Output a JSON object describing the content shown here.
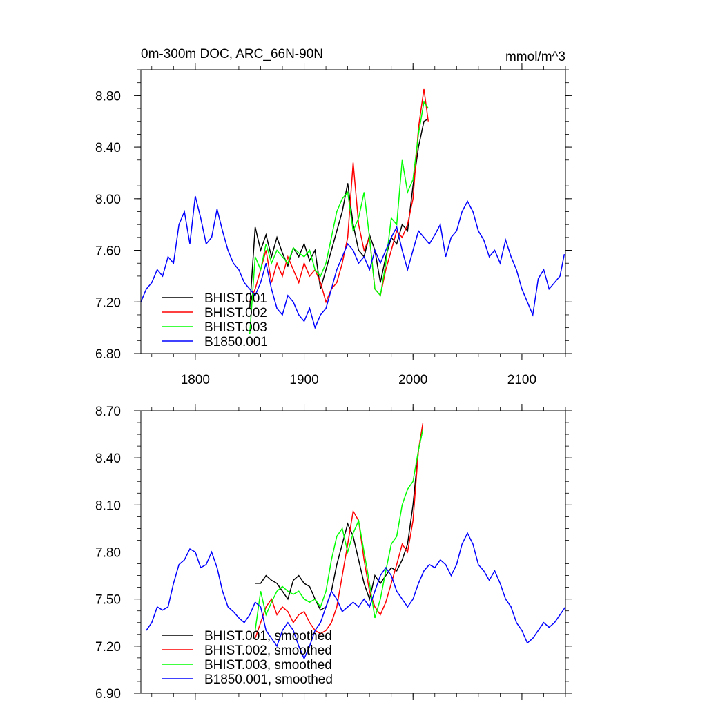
{
  "chart_data": [
    {
      "type": "line",
      "title": "0m-300m DOC, ARC_66N-90N",
      "units": "mmol/m^3",
      "xlim": [
        1750,
        2140
      ],
      "ylim": [
        6.8,
        9.0
      ],
      "x_ticks": [
        1800,
        1900,
        2000,
        2100
      ],
      "y_ticks": [
        6.8,
        7.2,
        7.6,
        8.0,
        8.4,
        8.8
      ],
      "y_tick_labels": [
        "6.80",
        "7.20",
        "7.60",
        "8.00",
        "8.40",
        "8.80"
      ],
      "x_tick_labels": [
        "1800",
        "1900",
        "2000",
        "2100"
      ],
      "legend_position": "bottom-left",
      "series": [
        {
          "name": "BHIST.001",
          "color": "#000000",
          "x": [
            1850,
            1855,
            1860,
            1865,
            1870,
            1875,
            1880,
            1885,
            1890,
            1895,
            1900,
            1905,
            1910,
            1915,
            1920,
            1925,
            1930,
            1935,
            1940,
            1945,
            1950,
            1955,
            1960,
            1965,
            1970,
            1975,
            1980,
            1985,
            1990,
            1995,
            2000,
            2005,
            2010,
            2014
          ],
          "y": [
            7.15,
            7.78,
            7.6,
            7.72,
            7.55,
            7.7,
            7.58,
            7.48,
            7.62,
            7.55,
            7.65,
            7.52,
            7.6,
            7.3,
            7.45,
            7.6,
            7.75,
            7.9,
            8.12,
            7.8,
            7.6,
            7.55,
            7.72,
            7.6,
            7.35,
            7.55,
            7.7,
            7.65,
            7.8,
            7.75,
            8.1,
            8.4,
            8.6,
            8.62
          ]
        },
        {
          "name": "BHIST.002",
          "color": "#ff0000",
          "x": [
            1850,
            1855,
            1860,
            1865,
            1870,
            1875,
            1880,
            1885,
            1890,
            1895,
            1900,
            1905,
            1910,
            1915,
            1920,
            1925,
            1930,
            1935,
            1940,
            1945,
            1950,
            1955,
            1960,
            1965,
            1970,
            1975,
            1980,
            1985,
            1990,
            1995,
            2000,
            2005,
            2010,
            2014
          ],
          "y": [
            7.2,
            7.3,
            7.45,
            7.6,
            7.35,
            7.5,
            7.4,
            7.55,
            7.45,
            7.35,
            7.5,
            7.4,
            7.45,
            7.35,
            7.2,
            7.3,
            7.35,
            7.5,
            7.7,
            8.28,
            7.8,
            7.6,
            7.7,
            7.3,
            7.25,
            7.45,
            7.6,
            7.75,
            7.7,
            7.8,
            8.0,
            8.55,
            8.85,
            8.6
          ]
        },
        {
          "name": "BHIST.003",
          "color": "#00ff00",
          "x": [
            1850,
            1855,
            1860,
            1865,
            1870,
            1875,
            1880,
            1885,
            1890,
            1895,
            1900,
            1905,
            1910,
            1915,
            1920,
            1925,
            1930,
            1935,
            1940,
            1945,
            1950,
            1955,
            1960,
            1965,
            1970,
            1975,
            1980,
            1985,
            1990,
            1995,
            2000,
            2005,
            2010,
            2014
          ],
          "y": [
            6.95,
            7.55,
            7.45,
            7.65,
            7.5,
            7.6,
            7.55,
            7.5,
            7.62,
            7.58,
            7.55,
            7.6,
            7.45,
            7.4,
            7.5,
            7.7,
            7.9,
            8.0,
            8.05,
            7.75,
            7.85,
            8.05,
            7.7,
            7.3,
            7.25,
            7.5,
            7.85,
            7.8,
            8.3,
            8.05,
            8.15,
            8.5,
            8.75,
            8.7
          ]
        },
        {
          "name": "B1850.001",
          "color": "#0000ff",
          "x": [
            1750,
            1755,
            1760,
            1765,
            1770,
            1775,
            1780,
            1785,
            1790,
            1795,
            1800,
            1805,
            1810,
            1815,
            1820,
            1825,
            1830,
            1835,
            1840,
            1845,
            1850,
            1855,
            1860,
            1865,
            1870,
            1875,
            1880,
            1885,
            1890,
            1895,
            1900,
            1905,
            1910,
            1915,
            1920,
            1925,
            1930,
            1935,
            1940,
            1945,
            1950,
            1955,
            1960,
            1965,
            1970,
            1975,
            1980,
            1985,
            1990,
            1995,
            2000,
            2005,
            2010,
            2015,
            2020,
            2025,
            2030,
            2035,
            2040,
            2045,
            2050,
            2055,
            2060,
            2065,
            2070,
            2075,
            2080,
            2085,
            2090,
            2095,
            2100,
            2105,
            2110,
            2115,
            2120,
            2125,
            2130,
            2135,
            2139
          ],
          "y": [
            7.2,
            7.3,
            7.35,
            7.45,
            7.4,
            7.55,
            7.5,
            7.8,
            7.9,
            7.65,
            8.02,
            7.85,
            7.65,
            7.7,
            7.92,
            7.75,
            7.6,
            7.5,
            7.45,
            7.35,
            7.3,
            7.25,
            7.35,
            7.5,
            7.3,
            7.15,
            7.1,
            7.25,
            7.2,
            7.1,
            7.05,
            7.15,
            7.0,
            7.1,
            7.15,
            7.3,
            7.45,
            7.55,
            7.65,
            7.6,
            7.5,
            7.55,
            7.45,
            7.6,
            7.5,
            7.6,
            7.7,
            7.78,
            7.6,
            7.45,
            7.6,
            7.75,
            7.7,
            7.65,
            7.72,
            7.8,
            7.55,
            7.7,
            7.75,
            7.9,
            7.98,
            7.9,
            7.75,
            7.68,
            7.55,
            7.6,
            7.5,
            7.68,
            7.55,
            7.45,
            7.3,
            7.2,
            7.1,
            7.38,
            7.45,
            7.3,
            7.35,
            7.4,
            7.57
          ]
        }
      ]
    },
    {
      "type": "line",
      "xlim": [
        1750,
        2140
      ],
      "ylim": [
        6.9,
        8.7
      ],
      "x_ticks": [
        1800,
        1900,
        2000,
        2100
      ],
      "y_ticks": [
        6.9,
        7.2,
        7.5,
        7.8,
        8.1,
        8.4,
        8.7
      ],
      "y_tick_labels": [
        "6.90",
        "7.20",
        "7.50",
        "7.80",
        "8.10",
        "8.40",
        "8.70"
      ],
      "legend_position": "bottom-left",
      "series": [
        {
          "name": "BHIST.001, smoothed",
          "color": "#000000",
          "x": [
            1855,
            1860,
            1865,
            1870,
            1875,
            1880,
            1885,
            1890,
            1895,
            1900,
            1905,
            1910,
            1915,
            1920,
            1925,
            1930,
            1935,
            1940,
            1945,
            1950,
            1955,
            1960,
            1965,
            1970,
            1975,
            1980,
            1985,
            1990,
            1995,
            2000,
            2005,
            2008
          ],
          "y": [
            7.6,
            7.6,
            7.65,
            7.62,
            7.6,
            7.55,
            7.5,
            7.62,
            7.65,
            7.6,
            7.58,
            7.5,
            7.43,
            7.45,
            7.55,
            7.72,
            7.85,
            7.98,
            7.9,
            7.75,
            7.6,
            7.5,
            7.65,
            7.6,
            7.65,
            7.7,
            7.68,
            7.75,
            7.85,
            8.1,
            8.45,
            8.55
          ]
        },
        {
          "name": "BHIST.002, smoothed",
          "color": "#ff0000",
          "x": [
            1855,
            1860,
            1865,
            1870,
            1875,
            1880,
            1885,
            1890,
            1895,
            1900,
            1905,
            1910,
            1915,
            1920,
            1925,
            1930,
            1935,
            1940,
            1945,
            1950,
            1955,
            1960,
            1965,
            1970,
            1975,
            1980,
            1985,
            1990,
            1995,
            2000,
            2005,
            2009
          ],
          "y": [
            7.25,
            7.35,
            7.45,
            7.5,
            7.4,
            7.45,
            7.42,
            7.35,
            7.4,
            7.42,
            7.35,
            7.3,
            7.28,
            7.3,
            7.35,
            7.45,
            7.65,
            7.85,
            8.06,
            8.0,
            7.75,
            7.55,
            7.45,
            7.4,
            7.48,
            7.6,
            7.72,
            7.85,
            7.8,
            8.0,
            8.45,
            8.62
          ]
        },
        {
          "name": "BHIST.003, smoothed",
          "color": "#00ff00",
          "x": [
            1855,
            1860,
            1865,
            1870,
            1875,
            1880,
            1885,
            1890,
            1895,
            1900,
            1905,
            1910,
            1915,
            1920,
            1925,
            1930,
            1935,
            1940,
            1945,
            1950,
            1955,
            1960,
            1965,
            1970,
            1975,
            1980,
            1985,
            1990,
            1995,
            2000,
            2005,
            2009
          ],
          "y": [
            7.3,
            7.55,
            7.4,
            7.48,
            7.55,
            7.58,
            7.55,
            7.53,
            7.55,
            7.5,
            7.48,
            7.5,
            7.45,
            7.55,
            7.75,
            7.9,
            7.95,
            7.8,
            7.92,
            8.0,
            7.8,
            7.6,
            7.38,
            7.5,
            7.68,
            7.85,
            7.9,
            8.1,
            8.2,
            8.25,
            8.45,
            8.58
          ]
        },
        {
          "name": "B1850.001, smoothed",
          "color": "#0000ff",
          "x": [
            1755,
            1760,
            1765,
            1770,
            1775,
            1780,
            1785,
            1790,
            1795,
            1800,
            1805,
            1810,
            1815,
            1820,
            1825,
            1830,
            1835,
            1840,
            1845,
            1850,
            1855,
            1860,
            1865,
            1870,
            1875,
            1880,
            1885,
            1890,
            1895,
            1900,
            1905,
            1910,
            1915,
            1920,
            1925,
            1930,
            1935,
            1940,
            1945,
            1950,
            1955,
            1960,
            1965,
            1970,
            1975,
            1980,
            1985,
            1990,
            1995,
            2000,
            2005,
            2010,
            2015,
            2020,
            2025,
            2030,
            2035,
            2040,
            2045,
            2050,
            2055,
            2060,
            2065,
            2070,
            2075,
            2080,
            2085,
            2090,
            2095,
            2100,
            2105,
            2110,
            2115,
            2120,
            2125,
            2130,
            2135,
            2140
          ],
          "y": [
            7.3,
            7.35,
            7.45,
            7.43,
            7.45,
            7.6,
            7.72,
            7.75,
            7.82,
            7.8,
            7.7,
            7.72,
            7.8,
            7.7,
            7.55,
            7.45,
            7.42,
            7.38,
            7.35,
            7.4,
            7.48,
            7.45,
            7.3,
            7.25,
            7.2,
            7.3,
            7.35,
            7.3,
            7.2,
            7.12,
            7.2,
            7.3,
            7.35,
            7.45,
            7.55,
            7.5,
            7.42,
            7.45,
            7.48,
            7.45,
            7.5,
            7.45,
            7.55,
            7.65,
            7.7,
            7.65,
            7.55,
            7.5,
            7.45,
            7.5,
            7.6,
            7.68,
            7.72,
            7.7,
            7.75,
            7.72,
            7.65,
            7.72,
            7.85,
            7.92,
            7.85,
            7.72,
            7.68,
            7.62,
            7.68,
            7.6,
            7.5,
            7.45,
            7.35,
            7.3,
            7.22,
            7.25,
            7.3,
            7.35,
            7.32,
            7.35,
            7.4,
            7.45
          ]
        }
      ]
    }
  ]
}
